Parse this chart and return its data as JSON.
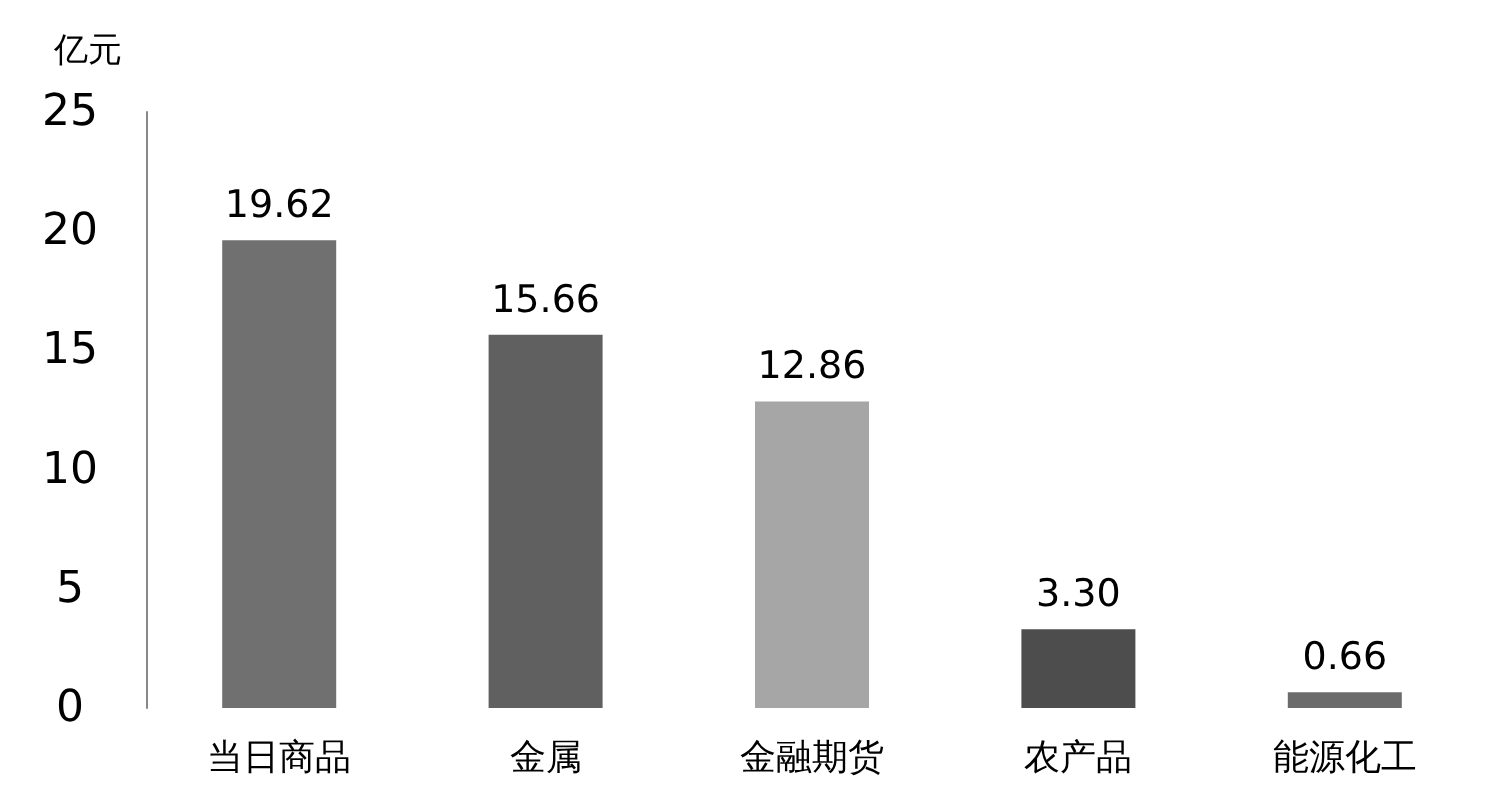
{
  "chart_data": {
    "type": "bar",
    "ylabel": "亿元",
    "categories": [
      "当日商品",
      "金属",
      "金融期货",
      "农产品",
      "能源化工"
    ],
    "values": [
      19.62,
      15.66,
      12.86,
      3.3,
      0.66
    ],
    "value_labels": [
      "19.62",
      "15.66",
      "12.86",
      "3.30",
      "0.66"
    ],
    "colors": [
      "#707070",
      "#606060",
      "#a6a6a6",
      "#4d4d4d",
      "#6b6b6b"
    ],
    "ylim": [
      0,
      25
    ],
    "yticks": [
      0,
      5,
      10,
      15,
      20,
      25
    ],
    "grid": false
  }
}
